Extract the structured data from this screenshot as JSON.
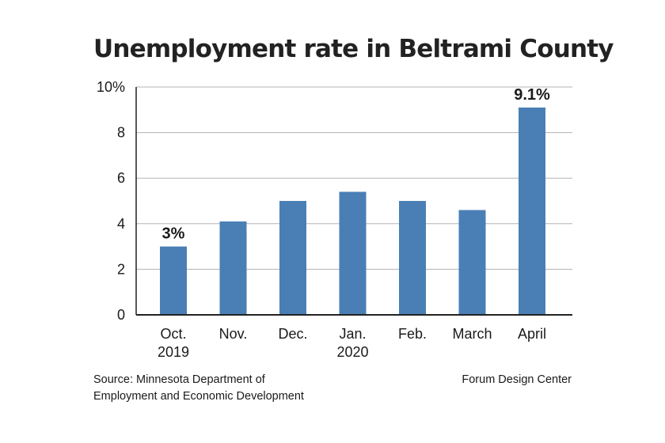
{
  "chart_data": {
    "type": "bar",
    "title": "Unemployment rate in Beltrami County",
    "categories": [
      [
        "Oct.",
        "2019"
      ],
      [
        "Nov."
      ],
      [
        "Dec."
      ],
      [
        "Jan.",
        "2020"
      ],
      [
        "Feb."
      ],
      [
        "March"
      ],
      [
        "April"
      ]
    ],
    "values": [
      3.0,
      4.1,
      5.0,
      5.4,
      5.0,
      4.6,
      9.1
    ],
    "data_labels": [
      "3%",
      "",
      "",
      "",
      "",
      "",
      "9.1%"
    ],
    "y_ticks": [
      {
        "value": 0,
        "label": "0"
      },
      {
        "value": 2,
        "label": "2"
      },
      {
        "value": 4,
        "label": "4"
      },
      {
        "value": 6,
        "label": "6"
      },
      {
        "value": 8,
        "label": "8"
      },
      {
        "value": 10,
        "label": "10%"
      }
    ],
    "ylim": [
      0,
      10
    ],
    "grid": true,
    "bar_color": "#4a7fb5",
    "grid_color": "#b3b3b3",
    "axis_color": "#222222"
  },
  "source": {
    "line1": "Source: Minnesota Department of",
    "line2": "Employment and Economic Development"
  },
  "credit": "Forum Design Center"
}
